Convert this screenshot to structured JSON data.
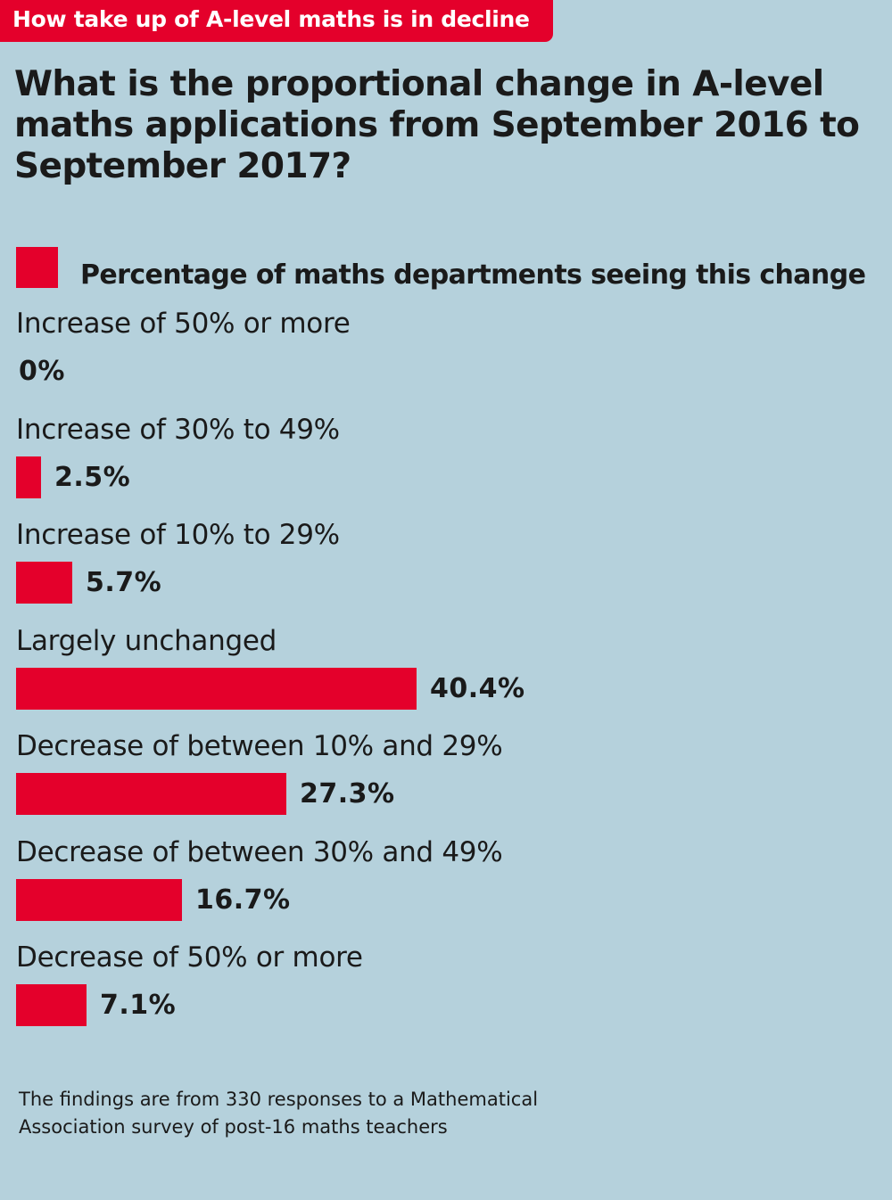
{
  "banner": "How take up of A-level maths is in decline",
  "footnote": "The findings are from 330 responses to a Mathematical Association survey of post-16 maths teachers",
  "colors": {
    "background": "#b5d1dc",
    "bar": "#e4002b",
    "banner": "#e4002b"
  },
  "chart_data": {
    "type": "bar",
    "orientation": "horizontal",
    "title": "What is the proportional change in A-level maths applications from September 2016 to September 2017?",
    "legend": "Percentage of maths departments seeing this change",
    "legend_position": "top-left",
    "grid": false,
    "unit": "%",
    "xlim": [
      0,
      40.4
    ],
    "categories": [
      "Increase of 50% or more",
      "Increase of 30% to 49%",
      "Increase of 10% to 29%",
      "Largely unchanged",
      "Decrease of between 10% and 29%",
      "Decrease of between 30% and 49%",
      "Decrease of 50% or more"
    ],
    "values": [
      0,
      2.5,
      5.7,
      40.4,
      27.3,
      16.7,
      7.1
    ],
    "value_labels": [
      "0%",
      "2.5%",
      "5.7%",
      "40.4%",
      "27.3%",
      "16.7%",
      "7.1%"
    ]
  }
}
